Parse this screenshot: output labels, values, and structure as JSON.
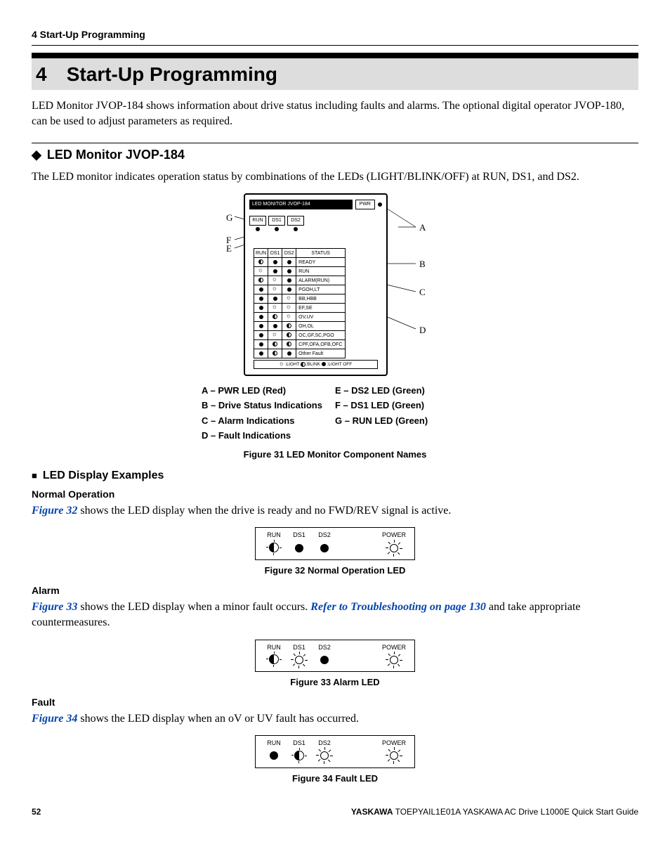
{
  "running_header": "4  Start-Up Programming",
  "section": {
    "number": "4",
    "title": "Start-Up Programming",
    "intro": "LED Monitor JVOP-184 shows information about drive status including faults and alarms. The optional digital operator JVOP-180, can be used to adjust parameters as required."
  },
  "subsection1": {
    "title": "LED Monitor JVOP-184",
    "text": "The LED monitor indicates operation status by combinations of the LEDs (LIGHT/BLINK/OFF) at RUN, DS1, and DS2."
  },
  "fig31": {
    "monitor_title": "LED MONITOR JVOP-184",
    "pwr": "PWR",
    "run_labels": [
      "RUN",
      "DS1",
      "DS2"
    ],
    "status_header": [
      "RUN",
      "DS1",
      "DS2",
      "STATUS"
    ],
    "status_rows": [
      {
        "sym": [
          "blink",
          "off",
          "off"
        ],
        "txt": "READY"
      },
      {
        "sym": [
          "light",
          "off",
          "off"
        ],
        "txt": "RUN"
      },
      {
        "sym": [
          "blink",
          "light",
          "off"
        ],
        "txt": "ALARM(RUN)"
      },
      {
        "sym": [
          "off",
          "light",
          "off"
        ],
        "txt": "PGOH,LT"
      },
      {
        "sym": [
          "off",
          "off",
          "light"
        ],
        "txt": "BB,HBB"
      },
      {
        "sym": [
          "off",
          "light",
          "light"
        ],
        "txt": "EF,SE"
      },
      {
        "sym": [
          "off",
          "blink",
          "light"
        ],
        "txt": "OV,UV"
      },
      {
        "sym": [
          "off",
          "off",
          "blink"
        ],
        "txt": "OH,OL"
      },
      {
        "sym": [
          "off",
          "light",
          "blink"
        ],
        "txt": "OC,GF,SC,PGO"
      },
      {
        "sym": [
          "off",
          "blink",
          "blink"
        ],
        "txt": "CPF,OFA,OFB,OFC"
      },
      {
        "sym": [
          "off",
          "blink",
          "off"
        ],
        "txt": "Other Fault"
      }
    ],
    "legend": ":LIGHT   :BLINK   :LIGHT OFF",
    "callouts": {
      "G": "G",
      "F": "F",
      "E": "E",
      "A": "A",
      "B": "B",
      "C": "C",
      "D": "D"
    },
    "key_left": [
      "A  – PWR LED (Red)",
      "B  – Drive Status Indications",
      "C  – Alarm Indications",
      "D  – Fault Indications"
    ],
    "key_right": [
      "E  – DS2 LED (Green)",
      "F  – DS1 LED (Green)",
      "G  – RUN LED (Green)"
    ],
    "caption": "Figure 31  LED Monitor Component Names"
  },
  "subsection2": {
    "title": "LED Display Examples",
    "normal_label": "Normal Operation",
    "normal_ref": "Figure 32",
    "normal_rest": " shows the LED display when the drive is ready and no FWD/REV signal is active.",
    "alarm_label": "Alarm",
    "alarm_ref": "Figure 33",
    "alarm_rest1": " shows the LED display when a minor fault occurs. ",
    "alarm_ref2": "Refer to Troubleshooting on page 130",
    "alarm_rest2": " and take appropriate countermeasures.",
    "fault_label": "Fault",
    "fault_ref": "Figure 34",
    "fault_rest": " shows the LED display when an oV or UV fault has occurred."
  },
  "led_labels": {
    "run": "RUN",
    "ds1": "DS1",
    "ds2": "DS2",
    "power": "POWER"
  },
  "fig32": {
    "states": {
      "run": "blink",
      "ds1": "off",
      "ds2": "off",
      "power": "light"
    },
    "caption": "Figure 32  Normal Operation LED"
  },
  "fig33": {
    "states": {
      "run": "blink",
      "ds1": "light",
      "ds2": "off",
      "power": "light"
    },
    "caption": "Figure 33  Alarm LED"
  },
  "fig34": {
    "states": {
      "run": "off",
      "ds1": "blink",
      "ds2": "light",
      "power": "light"
    },
    "caption": "Figure 34  Fault LED"
  },
  "footer": {
    "page": "52",
    "brand": "YASKAWA",
    "rest": " TOEPYAIL1E01A YASKAWA AC Drive L1000E Quick Start Guide"
  }
}
